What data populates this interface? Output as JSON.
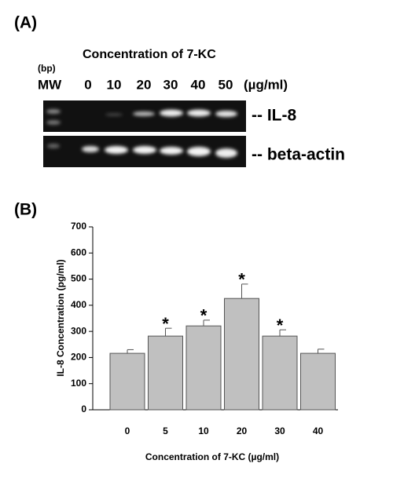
{
  "panel_a": {
    "panel_label": "(A)",
    "title": "Concentration of 7-KC",
    "bp_label": "(bp)",
    "mw_label": "MW",
    "lanes": [
      "0",
      "10",
      "20",
      "30",
      "40",
      "50"
    ],
    "unit": "(µg/ml)",
    "band_labels": [
      "-- IL-8",
      "-- beta-actin"
    ]
  },
  "chart_data": {
    "type": "bar",
    "panel_label": "(B)",
    "y_label": "IL-8 Concentration (pg/ml)",
    "x_label": "Concentration of 7-KC (µg/ml)",
    "categories": [
      "0",
      "5",
      "10",
      "20",
      "30",
      "40"
    ],
    "values": [
      216,
      282,
      321,
      426,
      282,
      216
    ],
    "errors": [
      14,
      30,
      22,
      55,
      24,
      16
    ],
    "color": "#c0c0c0",
    "annotations": [
      {
        "x": "5",
        "text": "*"
      },
      {
        "x": "10",
        "text": "*"
      },
      {
        "x": "20",
        "text": "*"
      },
      {
        "x": "30",
        "text": "*"
      }
    ],
    "ylim": [
      0,
      700
    ],
    "yticks": [
      0,
      100,
      200,
      300,
      400,
      500,
      600,
      700
    ]
  }
}
